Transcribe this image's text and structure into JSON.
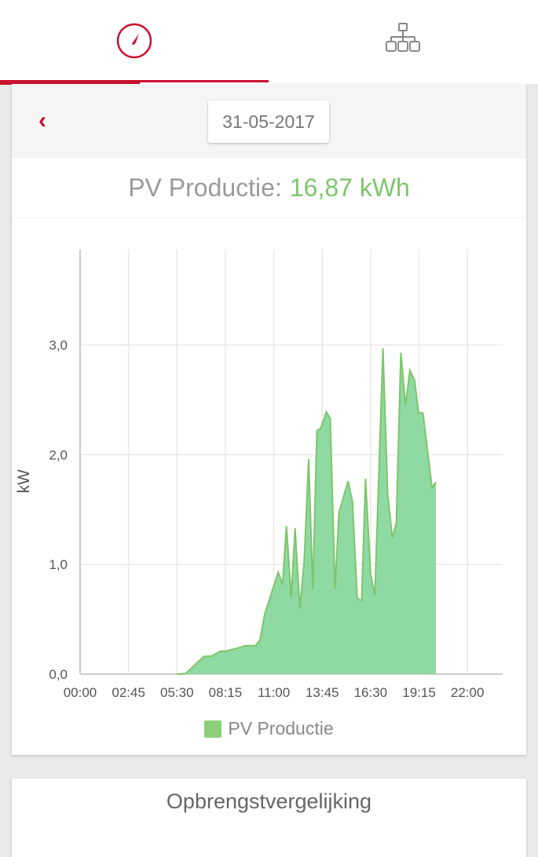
{
  "tabs": [
    {
      "name": "dashboard",
      "icon": "gauge-icon",
      "active": true
    },
    {
      "name": "structure",
      "icon": "sitemap-icon",
      "active": false
    }
  ],
  "date_nav": {
    "back_icon": "chevron-left-icon",
    "date": "31-05-2017"
  },
  "summary": {
    "label": "PV Productie:",
    "value": "16,87 kWh"
  },
  "colors": {
    "accent": "#c8102e",
    "green": "#7dc66b",
    "fill": "#8fd9a3"
  },
  "chart_data": {
    "type": "area",
    "ylabel": "kW",
    "xlabel": "",
    "xlim": [
      0,
      24
    ],
    "ylim": [
      0,
      3.87
    ],
    "x_ticks": [
      "00:00",
      "02:45",
      "05:30",
      "08:15",
      "11:00",
      "13:45",
      "16:30",
      "19:15",
      "22:00"
    ],
    "x_tick_values": [
      0,
      2.75,
      5.5,
      8.25,
      11,
      13.75,
      16.5,
      19.25,
      22
    ],
    "y_ticks": [
      "0,0",
      "1,0",
      "2,0",
      "3,0"
    ],
    "y_tick_values": [
      0,
      1,
      2,
      3
    ],
    "legend": [
      "PV Productie"
    ],
    "series": [
      {
        "name": "PV Productie",
        "x_hours": [
          5.51,
          5.99,
          7.02,
          7.47,
          7.99,
          8.27,
          8.8,
          9.38,
          9.96,
          10.21,
          10.49,
          11.25,
          11.5,
          11.72,
          11.99,
          12.21,
          12.48,
          12.73,
          12.98,
          13.22,
          13.45,
          13.66,
          13.99,
          14.21,
          14.48,
          14.7,
          15.22,
          15.47,
          15.74,
          15.99,
          16.21,
          16.5,
          16.74,
          17.2,
          17.47,
          17.74,
          17.96,
          18.22,
          18.48,
          18.73,
          19.0,
          19.22,
          19.47,
          19.99,
          20.21
        ],
        "values": [
          0,
          0.005,
          0.16,
          0.165,
          0.21,
          0.21,
          0.23,
          0.26,
          0.26,
          0.31,
          0.55,
          0.93,
          0.82,
          1.35,
          0.7,
          1.33,
          0.6,
          1.04,
          1.96,
          0.77,
          2.22,
          2.24,
          2.39,
          2.33,
          0.77,
          1.47,
          1.76,
          1.57,
          0.69,
          0.67,
          1.78,
          0.91,
          0.72,
          2.97,
          1.64,
          1.24,
          1.38,
          2.93,
          2.45,
          2.77,
          2.68,
          2.38,
          2.38,
          1.7,
          1.75
        ]
      }
    ]
  },
  "comparison": {
    "title": "Opbrengstvergelijking"
  }
}
